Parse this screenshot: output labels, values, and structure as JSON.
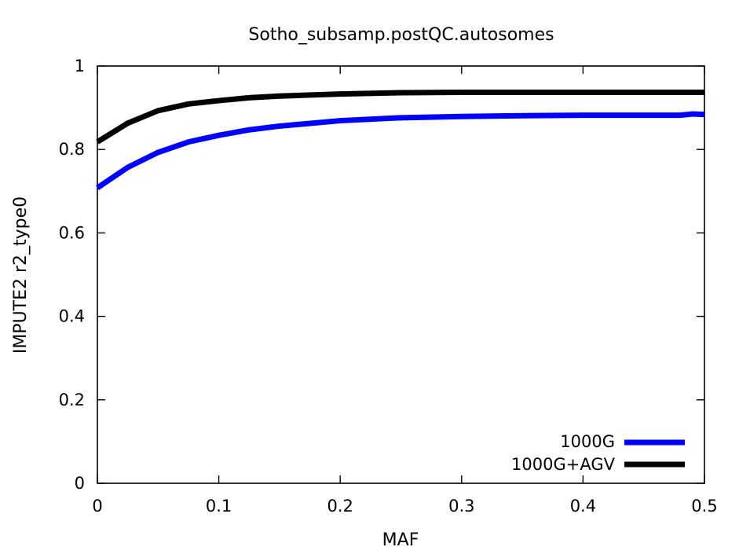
{
  "chart_data": {
    "type": "line",
    "title": "Sotho_subsamp.postQC.autosomes",
    "xlabel": "MAF",
    "ylabel": "IMPUTE2 r2_type0",
    "xlim": [
      0,
      0.5
    ],
    "ylim": [
      0,
      1
    ],
    "xticks": [
      "0",
      "0.1",
      "0.2",
      "0.3",
      "0.4",
      "0.5"
    ],
    "yticks": [
      "0",
      "0.2",
      "0.4",
      "0.6",
      "0.8",
      "1"
    ],
    "grid": false,
    "legend_position": "bottom-right",
    "series": [
      {
        "name": "1000G",
        "color": "#0000ff",
        "x": [
          0,
          0.025,
          0.05,
          0.075,
          0.1,
          0.125,
          0.15,
          0.2,
          0.25,
          0.3,
          0.35,
          0.4,
          0.45,
          0.48,
          0.49,
          0.5
        ],
        "y": [
          0.708,
          0.757,
          0.793,
          0.818,
          0.834,
          0.847,
          0.856,
          0.869,
          0.876,
          0.879,
          0.881,
          0.882,
          0.882,
          0.882,
          0.885,
          0.884
        ]
      },
      {
        "name": "1000G+AGV",
        "color": "#000000",
        "x": [
          0,
          0.025,
          0.05,
          0.075,
          0.1,
          0.125,
          0.15,
          0.2,
          0.25,
          0.3,
          0.35,
          0.4,
          0.45,
          0.5
        ],
        "y": [
          0.818,
          0.863,
          0.893,
          0.909,
          0.917,
          0.924,
          0.928,
          0.933,
          0.936,
          0.937,
          0.937,
          0.937,
          0.937,
          0.937
        ]
      }
    ]
  }
}
